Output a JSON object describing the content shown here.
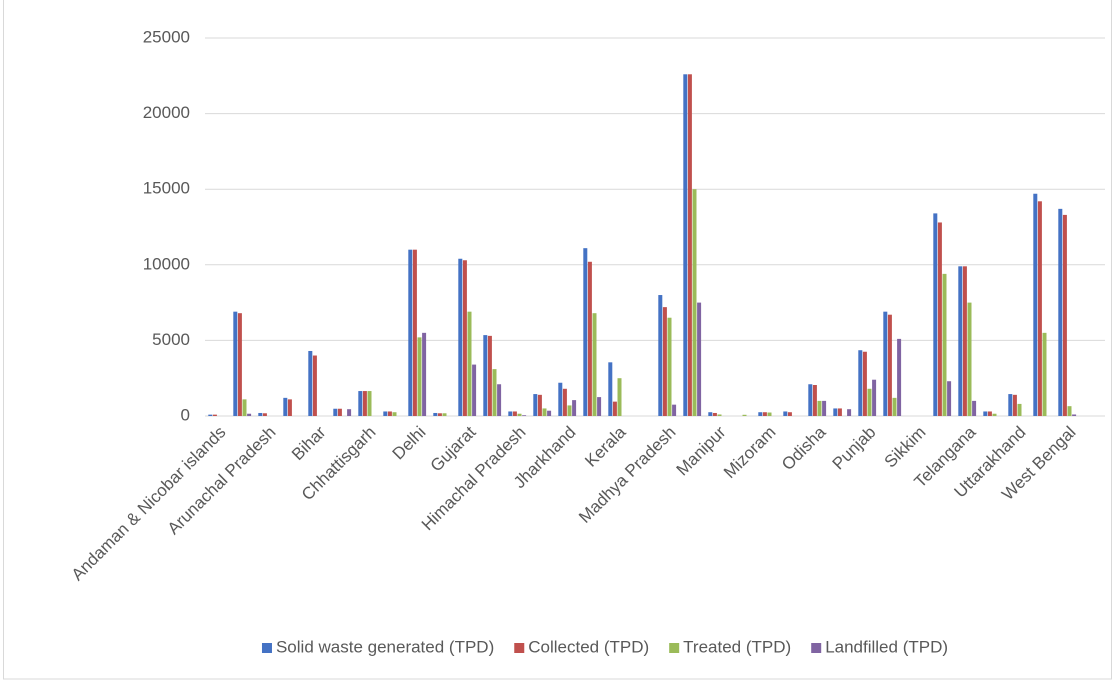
{
  "chart_data": {
    "type": "bar",
    "categories": [
      "Andaman & Nicobar islands",
      null,
      "Arunachal Pradesh",
      null,
      "Bihar",
      null,
      "Chhattisgarh",
      null,
      "Delhi",
      null,
      "Gujarat",
      null,
      "Himachal Pradesh",
      null,
      "Jharkhand",
      null,
      "Kerala",
      null,
      "Madhya Pradesh",
      null,
      "Manipur",
      null,
      "Mizoram",
      null,
      "Odisha",
      null,
      "Punjab",
      null,
      "Sikkim",
      null,
      "Telangana",
      null,
      "Uttarakhand",
      null,
      "West Bengal",
      null
    ],
    "series": [
      {
        "name": "Solid waste generated (TPD)",
        "color": "#4472c4",
        "values": [
          90,
          6900,
          200,
          1200,
          4300,
          480,
          1650,
          300,
          11000,
          200,
          10400,
          5350,
          300,
          1450,
          2200,
          11100,
          3550,
          0,
          8000,
          22600,
          250,
          0,
          250,
          300,
          2100,
          500,
          4350,
          6900,
          0,
          13400,
          9900,
          300,
          1450,
          14700,
          13700,
          0
        ]
      },
      {
        "name": "Collected (TPD)",
        "color": "#c0504d",
        "values": [
          90,
          6800,
          180,
          1100,
          4000,
          480,
          1650,
          300,
          11000,
          180,
          10300,
          5300,
          300,
          1400,
          1800,
          10200,
          950,
          0,
          7200,
          22600,
          200,
          0,
          250,
          250,
          2050,
          500,
          4250,
          6700,
          0,
          12800,
          9900,
          300,
          1400,
          14200,
          13300,
          0
        ]
      },
      {
        "name": "Treated (TPD)",
        "color": "#9bbb59",
        "values": [
          0,
          1100,
          0,
          0,
          0,
          0,
          1650,
          250,
          5200,
          180,
          6900,
          3100,
          150,
          500,
          700,
          6800,
          2500,
          0,
          6500,
          15000,
          100,
          80,
          230,
          0,
          1000,
          0,
          1800,
          1200,
          0,
          9400,
          7500,
          150,
          800,
          5500,
          650,
          0
        ]
      },
      {
        "name": "Landfilled (TPD)",
        "color": "#8064a2",
        "values": [
          0,
          150,
          0,
          0,
          0,
          450,
          0,
          0,
          5500,
          0,
          3400,
          2100,
          50,
          350,
          1050,
          1250,
          0,
          0,
          750,
          7500,
          0,
          0,
          0,
          0,
          1000,
          450,
          2400,
          5100,
          0,
          2300,
          1000,
          0,
          0,
          0,
          100,
          0
        ]
      }
    ],
    "ylim": [
      0,
      25000
    ],
    "yticks": [
      0,
      5000,
      10000,
      15000,
      20000,
      25000
    ],
    "grid": true,
    "legend": "bottom"
  }
}
